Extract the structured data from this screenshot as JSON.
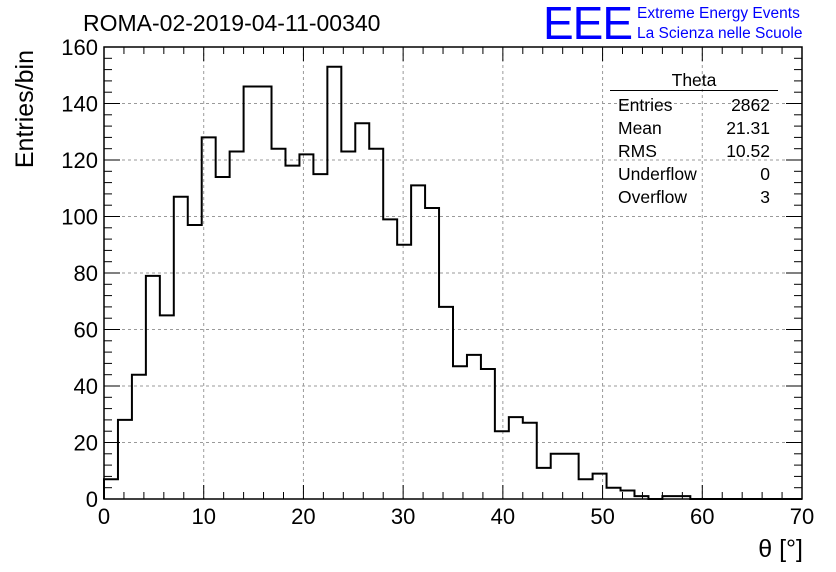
{
  "header": {
    "run_title": "ROMA-02-2019-04-11-00340",
    "logo_text": "EEE",
    "logo_line1": "Extreme Energy Events",
    "logo_line2": "La Scienza nelle Scuole"
  },
  "stats": {
    "title": "Theta",
    "rows": [
      {
        "label": "Entries",
        "value": "2862"
      },
      {
        "label": "Mean",
        "value": "21.31"
      },
      {
        "label": "RMS",
        "value": "10.52"
      },
      {
        "label": "Underflow",
        "value": "0"
      },
      {
        "label": "Overflow",
        "value": "3"
      }
    ]
  },
  "colors": {
    "line": "#000000",
    "grid": "#9a9a9a",
    "logo": "#0000ff"
  },
  "chart_data": {
    "type": "histogram",
    "xlabel": "θ [°]",
    "ylabel": "Entries/bin",
    "xlim": [
      0,
      70
    ],
    "ylim": [
      0,
      160
    ],
    "xticks": [
      0,
      10,
      20,
      30,
      40,
      50,
      60,
      70
    ],
    "yticks": [
      0,
      20,
      40,
      60,
      80,
      100,
      120,
      140,
      160
    ],
    "grid": true,
    "bin_width": 1.4,
    "bin_edges_start": 0,
    "values": [
      7,
      28,
      44,
      79,
      65,
      107,
      97,
      128,
      114,
      123,
      146,
      146,
      124,
      118,
      122,
      115,
      153,
      123,
      133,
      124,
      99,
      90,
      111,
      103,
      68,
      47,
      51,
      46,
      24,
      29,
      27,
      11,
      16,
      16,
      7,
      9,
      4,
      3,
      1,
      0,
      1,
      1,
      0,
      0,
      0,
      0,
      0,
      0,
      0,
      0
    ]
  }
}
